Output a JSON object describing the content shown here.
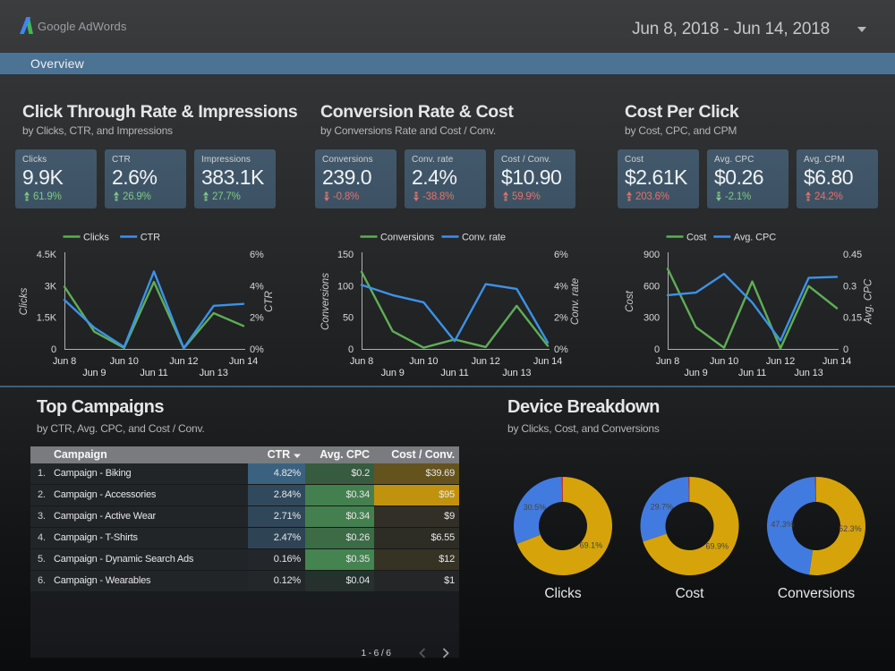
{
  "header": {
    "brand": "Google AdWords",
    "logo_icon": "adwords-a-logo",
    "date_range": "Jun 8, 2018 - Jun 14, 2018",
    "date_caret_icon": "triangle-down"
  },
  "nav": {
    "tab": "Overview"
  },
  "colors": {
    "series_green": "#5fae54",
    "series_blue": "#3c92e8",
    "delta_good": "#7fca81",
    "delta_bad": "#e2736a",
    "heatmap_ctr_blue": "#3a6280",
    "heatmap_cpc_green": "#458350",
    "heatmap_cost_gold": "#c1920e",
    "donut_gold": "#d6a40a",
    "donut_blue": "#427bdf",
    "donut_red": "#c43c2d",
    "nav_blue": "#4c7394",
    "divider_blue": "#3c5f80"
  },
  "metric_sections": [
    {
      "title": "Click Through Rate & Impressions",
      "subtitle": "by Clicks, CTR, and Impressions",
      "cards": [
        {
          "label": "Clicks",
          "value": "9.9K",
          "delta": "61.9%",
          "direction": "up",
          "tone": "good"
        },
        {
          "label": "CTR",
          "value": "2.6%",
          "delta": "26.9%",
          "direction": "up",
          "tone": "good"
        },
        {
          "label": "Impressions",
          "value": "383.1K",
          "delta": "27.7%",
          "direction": "up",
          "tone": "good"
        }
      ]
    },
    {
      "title": "Conversion Rate & Cost",
      "subtitle": "by Conversions Rate and Cost / Conv.",
      "cards": [
        {
          "label": "Conversions",
          "value": "239.0",
          "delta": "-0.8%",
          "direction": "down",
          "tone": "bad"
        },
        {
          "label": "Conv. rate",
          "value": "2.4%",
          "delta": "-38.8%",
          "direction": "down",
          "tone": "bad"
        },
        {
          "label": "Cost / Conv.",
          "value": "$10.90",
          "delta": "59.9%",
          "direction": "up",
          "tone": "bad"
        }
      ]
    },
    {
      "title": "Cost Per Click",
      "subtitle": "by Cost, CPC, and CPM",
      "cards": [
        {
          "label": "Cost",
          "value": "$2.61K",
          "delta": "203.6%",
          "direction": "up",
          "tone": "bad"
        },
        {
          "label": "Avg. CPC",
          "value": "$0.26",
          "delta": "-2.1%",
          "direction": "down",
          "tone": "good"
        },
        {
          "label": "Avg. CPM",
          "value": "$6.80",
          "delta": "24.2%",
          "direction": "up",
          "tone": "bad"
        }
      ]
    }
  ],
  "chart_data": [
    {
      "type": "line",
      "x": [
        "Jun 8",
        "Jun 9",
        "Jun 10",
        "Jun 11",
        "Jun 12",
        "Jun 13",
        "Jun 14"
      ],
      "left_axis": {
        "title": "Clicks",
        "ticks": [
          "0",
          "1.5K",
          "3K",
          "4.5K"
        ],
        "min": 0,
        "max": 4500
      },
      "right_axis": {
        "title": "CTR",
        "ticks": [
          "0%",
          "2%",
          "4%",
          "6%"
        ],
        "min": 0,
        "max": 6
      },
      "series": [
        {
          "name": "Clicks",
          "color": "series_green",
          "axis": "left",
          "values": [
            2950,
            820,
            50,
            3180,
            30,
            1700,
            1090
          ]
        },
        {
          "name": "CTR",
          "color": "series_blue",
          "axis": "right",
          "values": [
            3.1,
            1.35,
            0.12,
            4.9,
            0.05,
            2.73,
            2.85
          ]
        }
      ],
      "legend_position": "top",
      "grid": false
    },
    {
      "type": "line",
      "x": [
        "Jun 8",
        "Jun 9",
        "Jun 10",
        "Jun 11",
        "Jun 12",
        "Jun 13",
        "Jun 14"
      ],
      "left_axis": {
        "title": "Conversions",
        "ticks": [
          "0",
          "50",
          "100",
          "150"
        ],
        "min": 0,
        "max": 150
      },
      "right_axis": {
        "title": "Conv. rate",
        "ticks": [
          "0%",
          "2%",
          "4%",
          "6%"
        ],
        "min": 0,
        "max": 6
      },
      "series": [
        {
          "name": "Conversions",
          "color": "series_green",
          "axis": "left",
          "values": [
            122,
            28,
            2,
            15,
            3,
            68,
            5
          ]
        },
        {
          "name": "Conv. rate",
          "color": "series_blue",
          "axis": "right",
          "values": [
            4.05,
            3.4,
            2.95,
            0.5,
            4.1,
            3.8,
            0.4
          ]
        }
      ],
      "legend_position": "top",
      "grid": false
    },
    {
      "type": "line",
      "x": [
        "Jun 8",
        "Jun 9",
        "Jun 10",
        "Jun 11",
        "Jun 12",
        "Jun 13",
        "Jun 14"
      ],
      "left_axis": {
        "title": "Cost",
        "ticks": [
          "0",
          "300",
          "600",
          "900"
        ],
        "min": 0,
        "max": 900
      },
      "right_axis": {
        "title": "Avg. CPC",
        "ticks": [
          "0",
          "0.15",
          "0.3",
          "0.45"
        ],
        "min": 0,
        "max": 0.45
      },
      "series": [
        {
          "name": "Cost",
          "color": "series_green",
          "axis": "left",
          "values": [
            761,
            207,
            11,
            640,
            5,
            597,
            386
          ]
        },
        {
          "name": "Avg. CPC",
          "color": "series_blue",
          "axis": "right",
          "values": [
            0.255,
            0.267,
            0.356,
            0.22,
            0.04,
            0.337,
            0.342
          ]
        }
      ],
      "legend_position": "top",
      "grid": false
    },
    {
      "type": "pie",
      "title": "Clicks",
      "slices": [
        {
          "label": "69.1%",
          "pct": 69.1,
          "color": "donut_gold"
        },
        {
          "label": "30.5%",
          "pct": 30.5,
          "color": "donut_blue"
        },
        {
          "label": "",
          "pct": 0.4,
          "color": "donut_red"
        }
      ]
    },
    {
      "type": "pie",
      "title": "Cost",
      "slices": [
        {
          "label": "69.9%",
          "pct": 69.9,
          "color": "donut_gold"
        },
        {
          "label": "29.7%",
          "pct": 29.7,
          "color": "donut_blue"
        },
        {
          "label": "",
          "pct": 0.4,
          "color": "donut_red"
        }
      ]
    },
    {
      "type": "pie",
      "title": "Conversions",
      "slices": [
        {
          "label": "52.3%",
          "pct": 52.3,
          "color": "donut_gold"
        },
        {
          "label": "47.3%",
          "pct": 47.3,
          "color": "donut_blue"
        },
        {
          "label": "",
          "pct": 0.4,
          "color": "donut_red"
        }
      ]
    }
  ],
  "campaigns": {
    "title": "Top Campaigns",
    "subtitle": "by CTR, Avg. CPC, and Cost / Conv.",
    "columns": [
      "Campaign",
      "CTR",
      "Avg. CPC",
      "Cost / Conv."
    ],
    "sort_column": "CTR",
    "sort_icon": "triangle-down",
    "rows": [
      {
        "num": "1.",
        "name": "Campaign - Biking",
        "ctr": "4.82%",
        "cpc": "$0.2",
        "cost_conv": "$39.69",
        "ctr_v": 4.82,
        "cpc_v": 0.2,
        "cost_v": 39.69
      },
      {
        "num": "2.",
        "name": "Campaign - Accessories",
        "ctr": "2.84%",
        "cpc": "$0.34",
        "cost_conv": "$95",
        "ctr_v": 2.84,
        "cpc_v": 0.34,
        "cost_v": 95
      },
      {
        "num": "3.",
        "name": "Campaign - Active Wear",
        "ctr": "2.71%",
        "cpc": "$0.34",
        "cost_conv": "$9",
        "ctr_v": 2.71,
        "cpc_v": 0.34,
        "cost_v": 9
      },
      {
        "num": "4.",
        "name": "Campaign - T-Shirts",
        "ctr": "2.47%",
        "cpc": "$0.26",
        "cost_conv": "$6.55",
        "ctr_v": 2.47,
        "cpc_v": 0.26,
        "cost_v": 6.55
      },
      {
        "num": "5.",
        "name": "Campaign - Dynamic Search Ads",
        "ctr": "0.16%",
        "cpc": "$0.35",
        "cost_conv": "$12",
        "ctr_v": 0.16,
        "cpc_v": 0.35,
        "cost_v": 12
      },
      {
        "num": "6.",
        "name": "Campaign - Wearables",
        "ctr": "0.12%",
        "cpc": "$0.04",
        "cost_conv": "$1",
        "ctr_v": 0.12,
        "cpc_v": 0.04,
        "cost_v": 1
      }
    ],
    "pagination": "1 - 6 / 6"
  },
  "devices": {
    "title": "Device Breakdown",
    "subtitle": "by Clicks, Cost, and Conversions",
    "donut_labels": [
      "Clicks",
      "Cost",
      "Conversions"
    ]
  }
}
